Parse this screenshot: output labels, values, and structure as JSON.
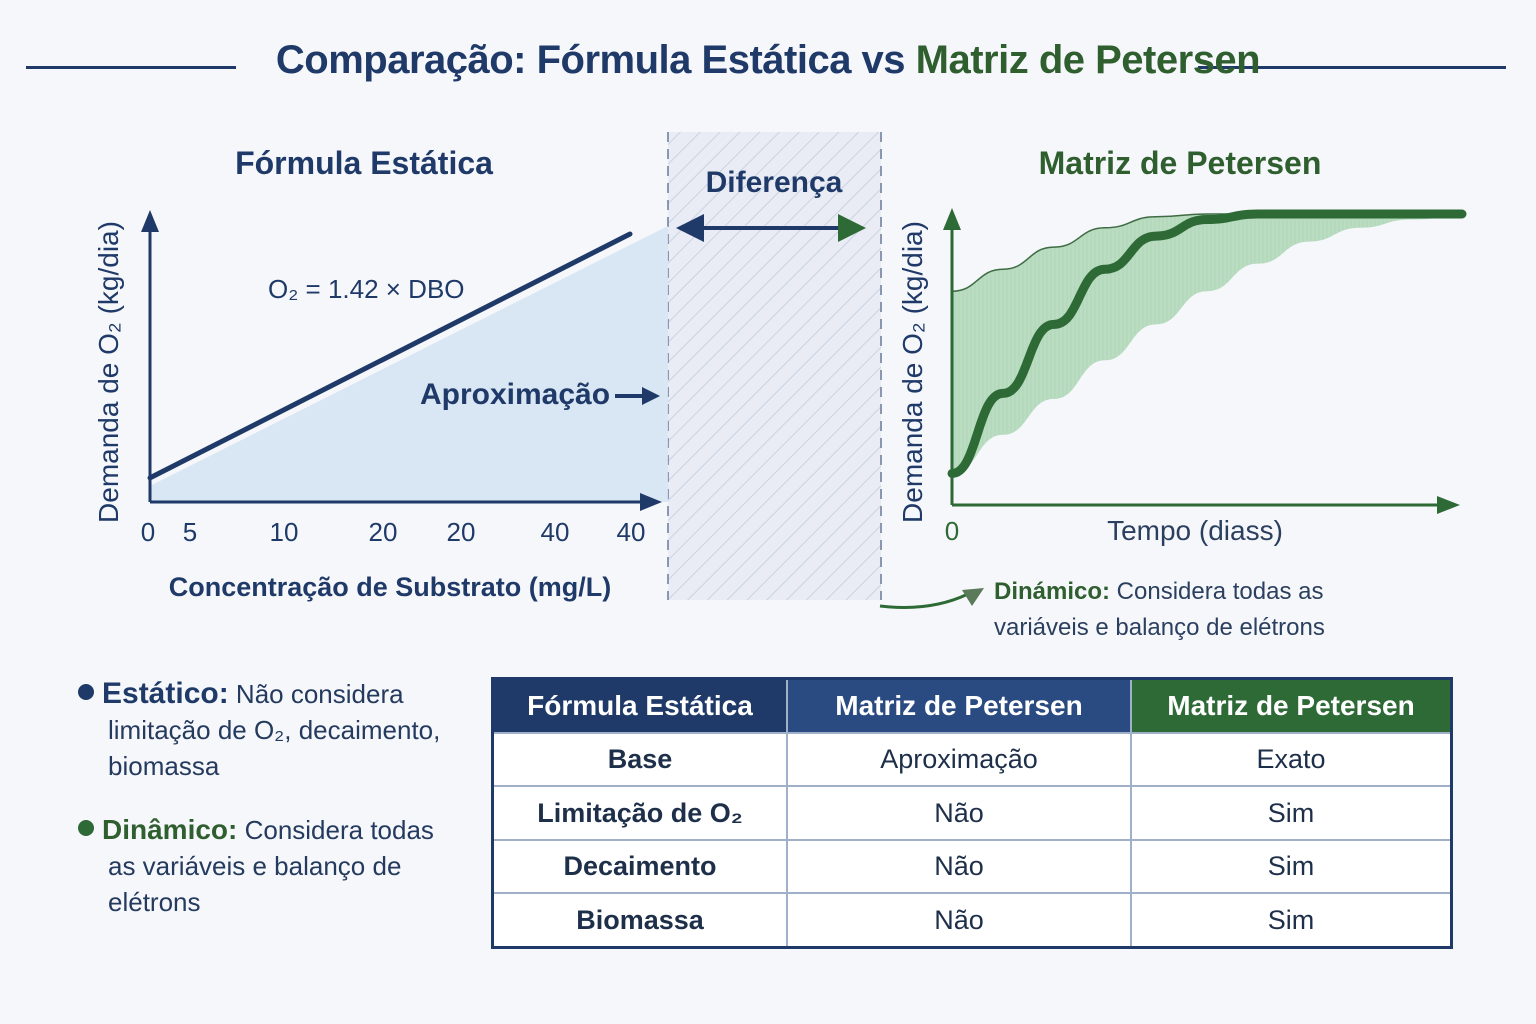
{
  "title": {
    "part1": "Comparação: Fórmula Estática vs ",
    "part2": "Matriz de Petersen"
  },
  "colors": {
    "static_blue": "#1f3a68",
    "petersen_green": "#2e6a36",
    "fill_blue": "#d6e3f2",
    "fill_green": "#7fc18a"
  },
  "chart_data": [
    {
      "type": "line",
      "title": "Fórmula Estática",
      "xlabel": "Concentração de Substrato (mg/L)",
      "ylabel": "Demanda de O₂ (kg/dia)",
      "x_tick_labels": [
        "0",
        "5",
        "10",
        "20",
        "20",
        "40",
        "40"
      ],
      "xlim": [
        0,
        40
      ],
      "series": [
        {
          "x": [
            0,
            40
          ],
          "y": [
            0.09,
            1.0
          ]
        }
      ],
      "equation": "O₂ = 1.42 × DBO",
      "annotation": "Aproximação",
      "grid": false
    },
    {
      "type": "area",
      "title": "Matriz de Petersen",
      "xlabel": "Tempo (diass)",
      "ylabel": "Demanda de O₂ (kg/dia)",
      "x_tick_labels": [
        "0"
      ],
      "series": [
        {
          "x": [
            0,
            0.1,
            0.2,
            0.3,
            0.4,
            0.5,
            0.6,
            0.7,
            0.8,
            0.9,
            1.0
          ],
          "y": [
            0.06,
            0.35,
            0.6,
            0.8,
            0.92,
            0.98,
            1.0,
            1.0,
            1.0,
            1.0,
            1.0
          ]
        }
      ],
      "band_upper": [
        0.72,
        0.8,
        0.88,
        0.95,
        0.99,
        1.0,
        1.0,
        1.0,
        1.0,
        1.0,
        1.0
      ],
      "band_lower": [
        0.06,
        0.2,
        0.33,
        0.47,
        0.6,
        0.72,
        0.82,
        0.9,
        0.95,
        0.98,
        0.99
      ],
      "grid": false
    }
  ],
  "difference": {
    "label": "Diferença"
  },
  "callout_dynamic": {
    "bold": "Dinámico:",
    "line1": " Considera todas as",
    "line2": "variáveis e balanço de elétrons"
  },
  "notes": {
    "static": {
      "bold": "Estático:",
      "text1": " Não considera",
      "text2": "limitação de O₂, decaimento,",
      "text3": "biomassa"
    },
    "dynamic": {
      "bold": "Dinâmico:",
      "text1": " Considera todas",
      "text2": "as variáveis e balanço de elétrons"
    }
  },
  "table": {
    "headers": [
      "Fórmula Estática",
      "Matriz de Petersen",
      "Matriz de Petersen"
    ],
    "rows": [
      [
        "Base",
        "Aproximação",
        "Exato"
      ],
      [
        "Limitação de O₂",
        "Não",
        "Sim"
      ],
      [
        "Decaimento",
        "Não",
        "Sim"
      ],
      [
        "Biomassa",
        "Não",
        "Sim"
      ]
    ]
  }
}
